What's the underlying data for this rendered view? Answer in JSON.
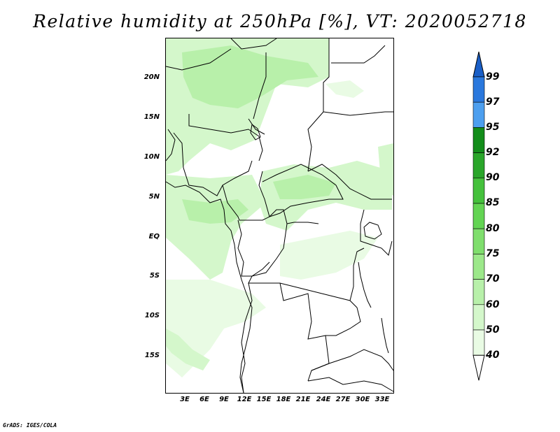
{
  "title": "Relative humidity at 250hPa [%], VT: 2020052718",
  "credit": "GrADS: IGES/COLA",
  "lat_labels": [
    "20N",
    "15N",
    "10N",
    "5N",
    "EQ",
    "5S",
    "10S",
    "15S"
  ],
  "lon_labels": [
    "3E",
    "6E",
    "9E",
    "12E",
    "15E",
    "18E",
    "21E",
    "24E",
    "27E",
    "30E",
    "33E"
  ],
  "colorbar": {
    "levels": [
      "40",
      "50",
      "60",
      "70",
      "75",
      "80",
      "85",
      "90",
      "92",
      "95",
      "97",
      "99"
    ],
    "colors": {
      "below_40": "#ffffff",
      "40_50": "#e9fbe4",
      "50_60": "#d4f7cb",
      "60_70": "#b8f0aa",
      "70_75": "#9ce88a",
      "75_80": "#7fde6d",
      "80_85": "#63d453",
      "85_90": "#45c13c",
      "90_92": "#2aa62a",
      "92_95": "#138d1a",
      "95_97": "#4d9fef",
      "97_99": "#2a78dd",
      "above_99": "#1a5fc7"
    }
  }
}
